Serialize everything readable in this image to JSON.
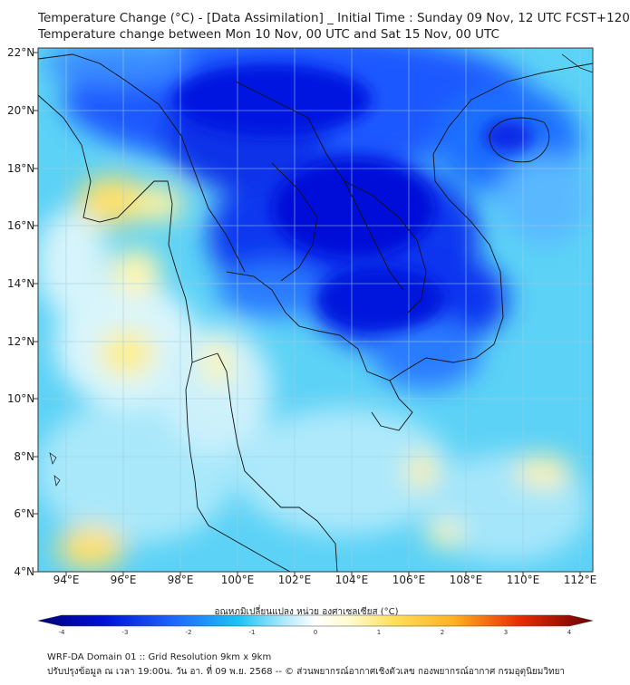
{
  "header": {
    "title_line1": "Temperature Change (°C) - [Data Assimilation] _ Initial Time : Sunday 09 Nov, 12 UTC FCST+120",
    "title_line2": "Temperature change between Mon 10 Nov, 00 UTC and Sat 15 Nov, 00 UTC"
  },
  "map": {
    "lat_labels": [
      "22°N",
      "20°N",
      "18°N",
      "16°N",
      "14°N",
      "12°N",
      "10°N",
      "8°N",
      "6°N",
      "4°N"
    ],
    "lon_labels": [
      "94°E",
      "96°E",
      "98°E",
      "100°E",
      "102°E",
      "104°E",
      "106°E",
      "108°E",
      "110°E",
      "112°E"
    ],
    "colors": {
      "deep_cold": "#0010d8",
      "cold": "#1f6bff",
      "cool": "#19c3f5",
      "light": "#b8ecfb",
      "neutral": "#f4fbff",
      "warm": "#fff08a",
      "warm2": "#ffd24a"
    }
  },
  "colorbar": {
    "label": "อุณหภูมิเปลี่ยนแปลง หน่วย องศาเซลเซียส (°C)",
    "ticks": [
      "-4",
      "-3",
      "-2",
      "-1",
      "0",
      "1",
      "2",
      "3",
      "4"
    ],
    "min": -4,
    "max": 4
  },
  "footer": {
    "line1": "WRF-DA Domain 01 :: Grid Resolution 9km x 9km",
    "line2": "ปรับปรุงข้อมูล ณ เวลา 19:00น. วัน อา. ที่ 09 พ.ย. 2568 -- © ส่วนพยากรณ์อากาศเชิงตัวเลข กองพยากรณ์อากาศ กรมอุตุนิยมวิทยา"
  }
}
